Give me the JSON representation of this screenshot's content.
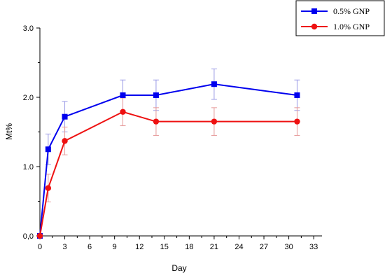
{
  "chart_data": {
    "type": "line",
    "title": "",
    "xlabel": "Day",
    "ylabel": "Mt%",
    "xlim": [
      0,
      34
    ],
    "ylim": [
      0,
      3
    ],
    "x_ticks": [
      0,
      3,
      6,
      9,
      12,
      15,
      18,
      21,
      24,
      27,
      30,
      33
    ],
    "x_tick_labels": [
      "0",
      "3",
      "6",
      "9",
      "12",
      "15",
      "18",
      "21",
      "24",
      "27",
      "30",
      "33"
    ],
    "y_ticks": [
      0,
      1,
      2,
      3
    ],
    "y_tick_labels": [
      "0,0",
      "1.0",
      "2.0",
      "3.0"
    ],
    "grid": false,
    "legend_position": "top-right",
    "series": [
      {
        "name": "0.5% GNP",
        "color": "#0000ee",
        "marker": "square",
        "x": [
          0,
          1,
          3,
          10,
          14,
          21,
          31
        ],
        "y": [
          0,
          1.25,
          1.72,
          2.03,
          2.03,
          2.19,
          2.03
        ],
        "error": [
          0,
          0.22,
          0.22,
          0.22,
          0.22,
          0.22,
          0.22
        ]
      },
      {
        "name": "1.0% GNP",
        "color": "#ee1111",
        "marker": "circle",
        "x": [
          0,
          1,
          3,
          10,
          14,
          21,
          31
        ],
        "y": [
          0,
          0.69,
          1.37,
          1.79,
          1.65,
          1.65,
          1.65
        ],
        "error": [
          0,
          0.2,
          0.2,
          0.2,
          0.2,
          0.2,
          0.2
        ]
      }
    ]
  }
}
